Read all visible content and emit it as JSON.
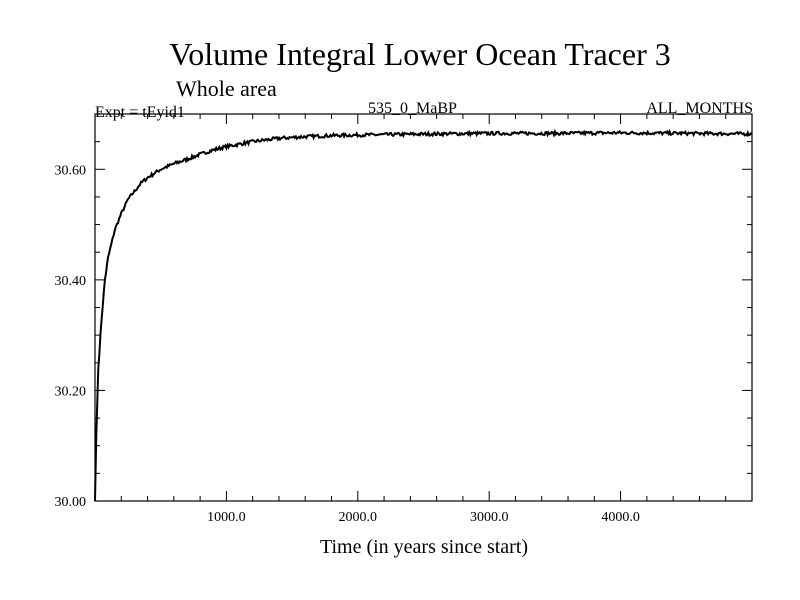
{
  "header": {
    "title": "Volume Integral Lower Ocean Tracer 3",
    "subtitle": "Whole area",
    "experiment": "Expt = tEyid1",
    "period": "535_0_MaBP",
    "months": "ALL_MONTHS"
  },
  "chart_data": {
    "type": "line",
    "title": "Volume Integral Lower Ocean Tracer 3",
    "subtitle": "Whole area",
    "xlabel": "Time (in years since start)",
    "ylabel": "",
    "xlim": [
      0,
      5000
    ],
    "ylim": [
      30.0,
      30.7
    ],
    "xticks": [
      1000,
      2000,
      3000,
      4000
    ],
    "xtick_labels": [
      "1000.0",
      "2000.0",
      "3000.0",
      "4000.0"
    ],
    "yticks": [
      30.0,
      30.2,
      30.4,
      30.6
    ],
    "ytick_labels": [
      "30.00",
      "30.20",
      "30.40",
      "30.60"
    ],
    "grid": false,
    "series": [
      {
        "name": "Lower Ocean Tracer 3",
        "color": "#000000",
        "x": [
          0,
          10,
          25,
          50,
          75,
          100,
          150,
          200,
          250,
          300,
          350,
          400,
          500,
          600,
          700,
          800,
          900,
          1000,
          1200,
          1400,
          1600,
          1800,
          2000,
          2300,
          2600,
          3000,
          3500,
          4000,
          4500,
          5000
        ],
        "y": [
          30.0,
          30.12,
          30.24,
          30.33,
          30.4,
          30.44,
          30.49,
          30.52,
          30.545,
          30.56,
          30.575,
          30.585,
          30.6,
          30.61,
          30.618,
          30.627,
          30.635,
          30.641,
          30.65,
          30.656,
          30.659,
          30.661,
          30.662,
          30.663,
          30.664,
          30.665,
          30.665,
          30.666,
          30.665,
          30.664
        ]
      }
    ]
  }
}
